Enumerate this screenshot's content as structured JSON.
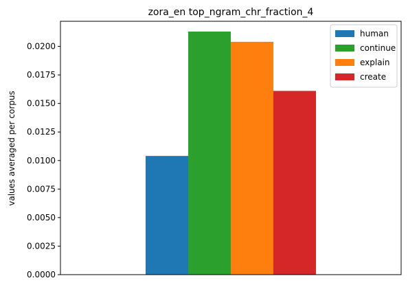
{
  "chart_data": {
    "type": "bar",
    "title": "zora_en top_ngram_chr_fraction_4",
    "xlabel": "",
    "ylabel": "values averaged per corpus",
    "ylim": [
      0,
      0.0222
    ],
    "yticks": [
      "0.0000",
      "0.0025",
      "0.0050",
      "0.0075",
      "0.0100",
      "0.0125",
      "0.0150",
      "0.0175",
      "0.0200"
    ],
    "ytick_values": [
      0,
      0.0025,
      0.005,
      0.0075,
      0.01,
      0.0125,
      0.015,
      0.0175,
      0.02
    ],
    "categories": [
      ""
    ],
    "series": [
      {
        "name": "human",
        "values": [
          0.0104
        ],
        "color": "#1f77b4"
      },
      {
        "name": "continue",
        "values": [
          0.0213
        ],
        "color": "#2ca02c"
      },
      {
        "name": "explain",
        "values": [
          0.0204
        ],
        "color": "#ff7f0e"
      },
      {
        "name": "create",
        "values": [
          0.0161
        ],
        "color": "#d62728"
      }
    ],
    "grid": false,
    "legend_position": "top-right"
  }
}
